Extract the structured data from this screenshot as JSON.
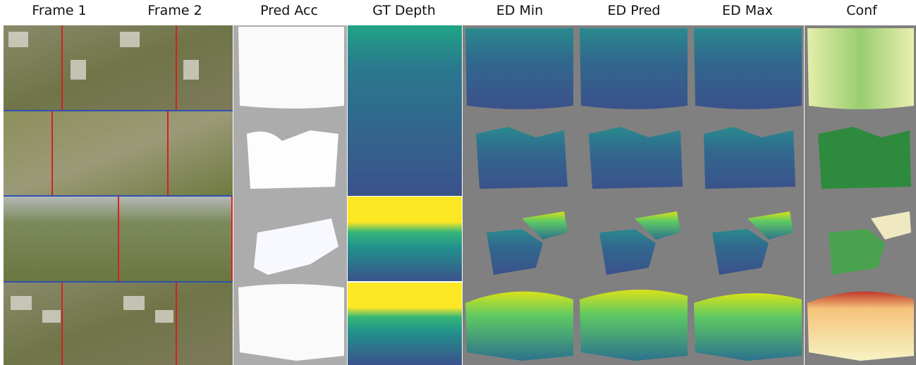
{
  "columns": [
    "Frame 1",
    "Frame 2",
    "Pred Acc",
    "GT Depth",
    "ED Min",
    "ED Pred",
    "ED Max",
    "Conf"
  ]
}
